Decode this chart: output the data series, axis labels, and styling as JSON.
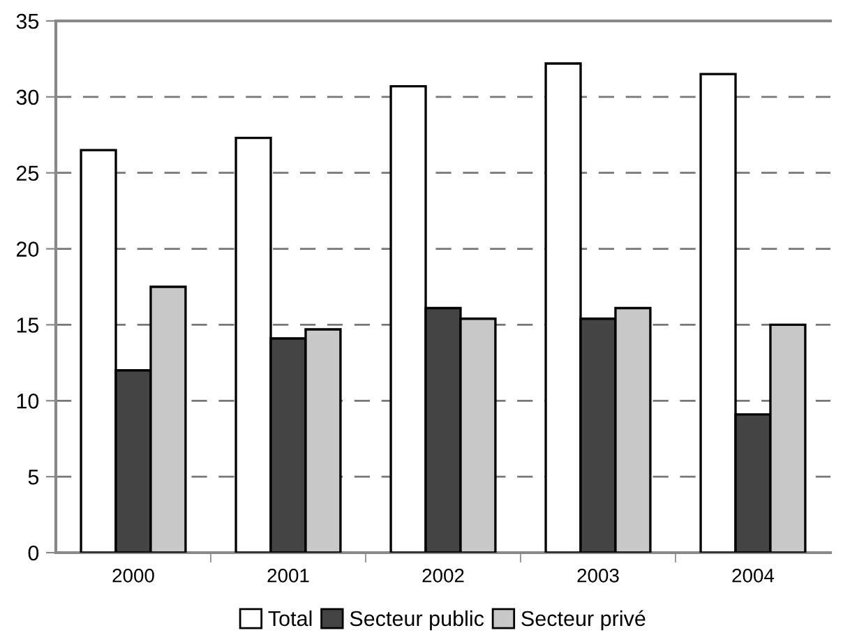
{
  "chart_data": {
    "type": "bar",
    "categories": [
      "2000",
      "2001",
      "2002",
      "2003",
      "2004"
    ],
    "series": [
      {
        "name": "Total",
        "color": "#ffffff",
        "values": [
          26.5,
          27.3,
          30.7,
          32.2,
          31.5
        ]
      },
      {
        "name": "Secteur public",
        "color": "#444444",
        "values": [
          12.0,
          14.1,
          16.1,
          15.4,
          9.1
        ]
      },
      {
        "name": "Secteur privé",
        "color": "#c8c8c8",
        "values": [
          17.5,
          14.7,
          15.4,
          16.1,
          15.0
        ]
      }
    ],
    "ylim": [
      0,
      35
    ],
    "yticks": [
      0,
      5,
      10,
      15,
      20,
      25,
      30,
      35
    ],
    "grid": "y",
    "legend": "bottom"
  }
}
